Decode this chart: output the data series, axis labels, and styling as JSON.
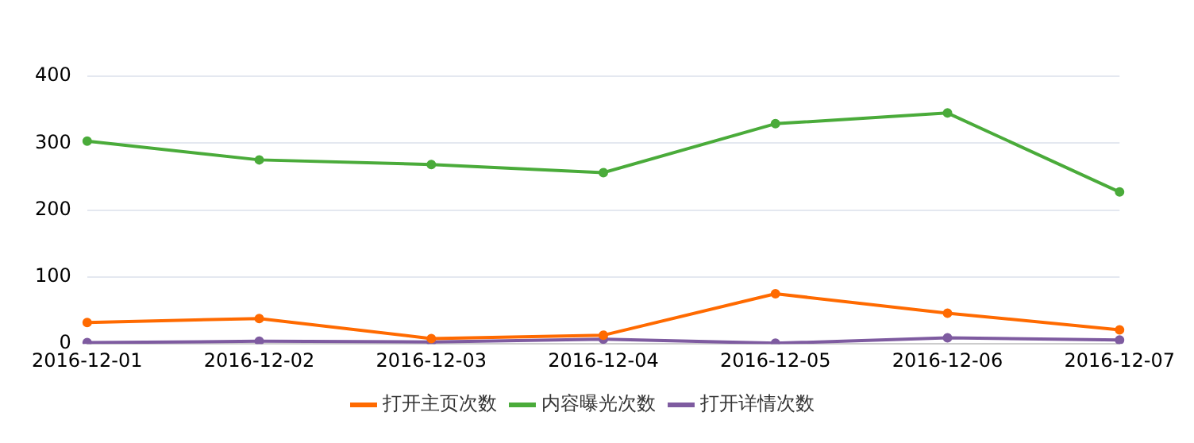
{
  "chart_data": {
    "type": "line",
    "categories": [
      "2016-12-01",
      "2016-12-02",
      "2016-12-03",
      "2016-12-04",
      "2016-12-05",
      "2016-12-06",
      "2016-12-07"
    ],
    "series": [
      {
        "name": "打开主页次数",
        "color": "#ff6a00",
        "values": [
          32,
          38,
          8,
          13,
          75,
          46,
          21
        ]
      },
      {
        "name": "内容曝光次数",
        "color": "#4aab3a",
        "values": [
          303,
          275,
          268,
          256,
          329,
          345,
          227
        ]
      },
      {
        "name": "打开详情次数",
        "color": "#7e5ba0",
        "values": [
          2,
          4,
          3,
          7,
          1,
          9,
          6
        ]
      }
    ],
    "ylim": [
      0,
      400
    ],
    "yticks": [
      0,
      100,
      200,
      300,
      400
    ],
    "grid": "y",
    "legend": "bottom",
    "marker": "circle",
    "line_style": "solid"
  }
}
